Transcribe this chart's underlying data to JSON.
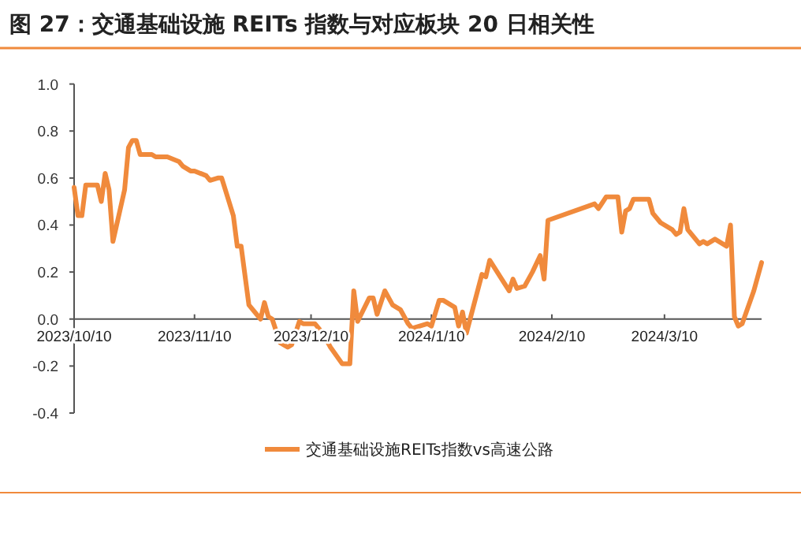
{
  "chart_data": {
    "type": "line",
    "title": "图 27：交通基础设施 REITs 指数与对应板块 20 日相关性",
    "x": [
      "2023-10-10",
      "2023-10-11",
      "2023-10-12",
      "2023-10-13",
      "2023-10-16",
      "2023-10-17",
      "2023-10-18",
      "2023-10-19",
      "2023-10-20",
      "2023-10-23",
      "2023-10-24",
      "2023-10-25",
      "2023-10-26",
      "2023-10-27",
      "2023-10-30",
      "2023-10-31",
      "2023-11-03",
      "2023-11-06",
      "2023-11-07",
      "2023-11-09",
      "2023-11-10",
      "2023-11-13",
      "2023-11-14",
      "2023-11-16",
      "2023-11-17",
      "2023-11-20",
      "2023-11-21",
      "2023-11-22",
      "2023-11-24",
      "2023-11-27",
      "2023-11-28",
      "2023-11-29",
      "2023-11-30",
      "2023-12-02",
      "2023-12-04",
      "2023-12-05",
      "2023-12-07",
      "2023-12-08",
      "2023-12-11",
      "2023-12-13",
      "2023-12-15",
      "2023-12-18",
      "2023-12-19",
      "2023-12-20",
      "2023-12-21",
      "2023-12-22",
      "2023-12-25",
      "2023-12-26",
      "2023-12-27",
      "2023-12-29",
      "2023-12-31",
      "2024-01-02",
      "2024-01-04",
      "2024-01-05",
      "2024-01-09",
      "2024-01-10",
      "2024-01-12",
      "2024-01-13",
      "2024-01-16",
      "2024-01-17",
      "2024-01-18",
      "2024-01-19",
      "2024-01-23",
      "2024-01-24",
      "2024-01-25",
      "2024-01-30",
      "2024-01-31",
      "2024-02-01",
      "2024-02-03",
      "2024-02-05",
      "2024-02-07",
      "2024-02-08",
      "2024-02-09",
      "2024-02-21",
      "2024-02-22",
      "2024-02-24",
      "2024-02-27",
      "2024-02-28",
      "2024-02-29",
      "2024-03-01",
      "2024-03-02",
      "2024-03-06",
      "2024-03-07",
      "2024-03-09",
      "2024-03-12",
      "2024-03-13",
      "2024-03-14",
      "2024-03-15",
      "2024-03-16",
      "2024-03-19",
      "2024-03-20",
      "2024-03-21",
      "2024-03-23",
      "2024-03-26",
      "2024-03-27",
      "2024-03-28",
      "2024-03-29",
      "2024-03-30",
      "2024-04-02",
      "2024-04-04"
    ],
    "series": [
      {
        "name": "交通基础设施REITs指数vs高速公路",
        "color": "#f08a3c",
        "values": [
          0.56,
          0.44,
          0.44,
          0.57,
          0.57,
          0.5,
          0.62,
          0.55,
          0.33,
          0.55,
          0.73,
          0.76,
          0.76,
          0.7,
          0.7,
          0.69,
          0.69,
          0.67,
          0.65,
          0.63,
          0.63,
          0.61,
          0.59,
          0.6,
          0.6,
          0.44,
          0.31,
          0.31,
          0.06,
          0.0,
          0.07,
          0.01,
          0.0,
          -0.1,
          -0.12,
          -0.11,
          -0.01,
          -0.02,
          -0.02,
          -0.06,
          -0.12,
          -0.19,
          -0.19,
          -0.19,
          0.12,
          -0.01,
          0.09,
          0.09,
          0.02,
          0.12,
          0.06,
          0.04,
          -0.02,
          -0.04,
          -0.02,
          -0.03,
          0.08,
          0.08,
          0.05,
          -0.03,
          0.03,
          -0.06,
          0.19,
          0.18,
          0.25,
          0.12,
          0.17,
          0.13,
          0.14,
          0.2,
          0.27,
          0.17,
          0.42,
          0.49,
          0.47,
          0.52,
          0.52,
          0.37,
          0.46,
          0.47,
          0.51,
          0.51,
          0.45,
          0.41,
          0.38,
          0.36,
          0.37,
          0.47,
          0.38,
          0.32,
          0.33,
          0.32,
          0.34,
          0.31,
          0.4,
          0.01,
          -0.03,
          -0.02,
          0.12,
          0.24
        ]
      }
    ],
    "xlim": [
      "2023-10-10",
      "2024-04-04"
    ],
    "xticks": [
      {
        "value": "2023-10-10",
        "label": "2023/10/10"
      },
      {
        "value": "2023-11-10",
        "label": "2023/11/10"
      },
      {
        "value": "2023-12-10",
        "label": "2023/12/10"
      },
      {
        "value": "2024-01-10",
        "label": "2024/1/10"
      },
      {
        "value": "2024-02-10",
        "label": "2024/2/10"
      },
      {
        "value": "2024-03-10",
        "label": "2024/3/10"
      }
    ],
    "ylim": [
      -0.4,
      1.0
    ],
    "yticks": [
      {
        "value": -0.4,
        "label": "-0.4"
      },
      {
        "value": -0.2,
        "label": "-0.2"
      },
      {
        "value": 0,
        "label": "0.0"
      },
      {
        "value": 0.2,
        "label": "0.2"
      },
      {
        "value": 0.4,
        "label": "0.4"
      },
      {
        "value": 0.6,
        "label": "0.6"
      },
      {
        "value": 0.8,
        "label": "0.8"
      },
      {
        "value": 1.0,
        "label": "1.0"
      }
    ],
    "grid": false,
    "legend": "bottom",
    "marker": "none",
    "line_style": "solid"
  }
}
